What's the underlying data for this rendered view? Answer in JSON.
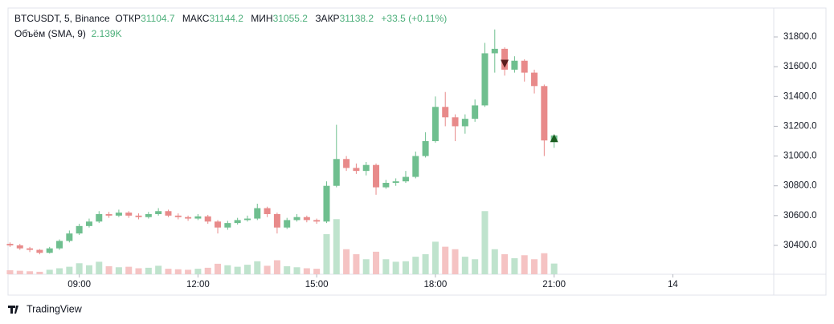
{
  "chart_data": {
    "type": "candlestick",
    "header": {
      "symbol": "BTCUSDT, 5, Binance",
      "open_label": "ОТКР",
      "high_label": "МАКС",
      "low_label": "МИН",
      "close_label": "ЗАКР",
      "change": "+33.5 (+0.11%)"
    },
    "volume_title": "Объём (SMA, 9)",
    "volume_last_label": "2.139K",
    "open": [
      30410,
      30400,
      30380,
      30370,
      30350,
      30380,
      30430,
      30480,
      30530,
      30560,
      30610,
      30600,
      30620,
      30600,
      30590,
      30610,
      30630,
      30600,
      30590,
      30580,
      30595,
      30560,
      30520,
      30550,
      30570,
      30580,
      30650,
      30610,
      30520,
      30570,
      30590,
      30570,
      30560,
      30800,
      30980,
      30920,
      30900,
      30940,
      30790,
      30820,
      30830,
      30860,
      31000,
      31100,
      31330,
      31260,
      31200,
      31250,
      31340,
      31690,
      31720,
      31580,
      31640,
      31560,
      31470,
      31104.7
    ],
    "high": [
      30420,
      30410,
      30390,
      30375,
      30390,
      30440,
      30500,
      30545,
      30580,
      30630,
      30625,
      30640,
      30630,
      30615,
      30625,
      30650,
      30640,
      30615,
      30600,
      30610,
      30605,
      30570,
      30565,
      30585,
      30600,
      30680,
      30660,
      30620,
      30585,
      30610,
      30600,
      30580,
      30830,
      31210,
      31000,
      30950,
      30960,
      30950,
      30840,
      30850,
      30900,
      31030,
      31160,
      31400,
      31430,
      31280,
      31280,
      31380,
      31760,
      31850,
      31730,
      31670,
      31650,
      31580,
      31480,
      31144.2
    ],
    "low": [
      30390,
      30370,
      30355,
      30340,
      30345,
      30370,
      30420,
      30470,
      30520,
      30550,
      30585,
      30590,
      30585,
      30575,
      30580,
      30600,
      30590,
      30575,
      30565,
      30570,
      30545,
      30480,
      30505,
      30540,
      30560,
      30570,
      30590,
      30480,
      30510,
      30560,
      30555,
      30545,
      30550,
      30790,
      30900,
      30880,
      30870,
      30740,
      30780,
      30800,
      30820,
      30850,
      30990,
      31090,
      31200,
      31100,
      31150,
      31230,
      31330,
      31560,
      31540,
      31560,
      31500,
      31420,
      31000,
      31055.2
    ],
    "close": [
      30400,
      30380,
      30370,
      30350,
      30380,
      30430,
      30480,
      30530,
      30560,
      30610,
      30600,
      30620,
      30600,
      30590,
      30610,
      30630,
      30600,
      30590,
      30580,
      30595,
      30560,
      30520,
      30550,
      30570,
      30580,
      30650,
      30610,
      30520,
      30570,
      30590,
      30570,
      30560,
      30800,
      30980,
      30920,
      30900,
      30940,
      30790,
      30820,
      30830,
      30860,
      31000,
      31100,
      31330,
      31260,
      31200,
      31250,
      31340,
      31690,
      31720,
      31580,
      31640,
      31560,
      31470,
      31104.7,
      31138.2
    ],
    "volume": [
      800,
      700,
      600,
      500,
      900,
      1200,
      1500,
      2200,
      1800,
      2500,
      1600,
      1400,
      1500,
      1200,
      1300,
      1700,
      1100,
      1000,
      900,
      1100,
      1300,
      2100,
      1800,
      1500,
      1900,
      2600,
      1700,
      2800,
      1600,
      1400,
      1200,
      1100,
      8000,
      11000,
      5000,
      4000,
      3000,
      4500,
      3000,
      2500,
      2600,
      3500,
      4000,
      6500,
      5500,
      5000,
      3500,
      3000,
      12600,
      5000,
      4000,
      3200,
      3800,
      3000,
      4200,
      2139
    ],
    "markers": [
      {
        "index": 50,
        "value": 31620,
        "direction": "down",
        "color": "#5a1c1c"
      },
      {
        "index": 55,
        "value": 31120,
        "direction": "up",
        "color": "#1b5e20"
      }
    ],
    "up_color": "#6fbf8f",
    "down_color": "#e88a8a",
    "volume_up_color": "#bfe3cd",
    "volume_down_color": "#f5c3c3",
    "xlim": [
      -0.2,
      77.2
    ],
    "xticks": [
      {
        "value": 7,
        "label": "09:00"
      },
      {
        "value": 19,
        "label": "12:00"
      },
      {
        "value": 31,
        "label": "15:00"
      },
      {
        "value": 43,
        "label": "18:00"
      },
      {
        "value": 55,
        "label": "21:00"
      },
      {
        "value": 67,
        "label": "14"
      }
    ],
    "ylim": [
      30206,
      31994
    ],
    "yticks": [
      {
        "value": 30400,
        "label": "30400.0"
      },
      {
        "value": 30600,
        "label": "30600.0"
      },
      {
        "value": 30800,
        "label": "30800.0"
      },
      {
        "value": 31000,
        "label": "31000.0"
      },
      {
        "value": 31200,
        "label": "31200.0"
      },
      {
        "value": 31400,
        "label": "31400.0"
      },
      {
        "value": 31600,
        "label": "31600.0"
      },
      {
        "value": 31800,
        "label": "31800.0"
      }
    ],
    "volume_ylim": [
      0,
      16000
    ],
    "footer": "TradingView"
  }
}
